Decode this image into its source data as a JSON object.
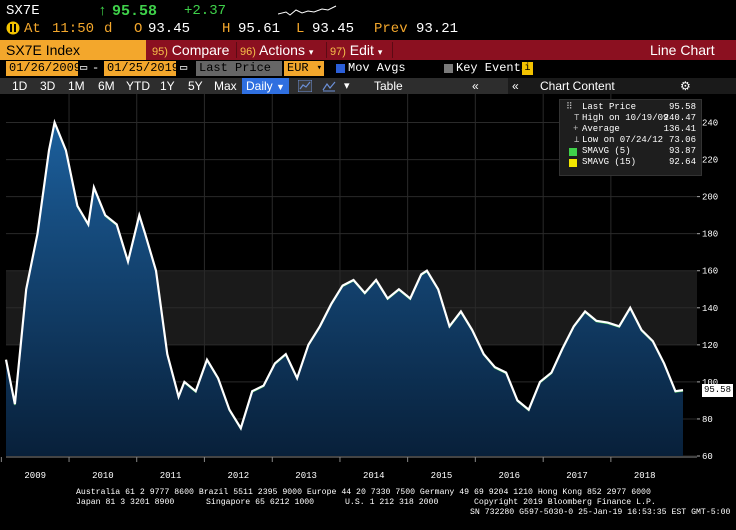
{
  "ticker": {
    "symbol": "SX7E",
    "arrow": "↑",
    "last": "95.58",
    "change": "+2.37",
    "at_label": "At",
    "time": "11:50",
    "time_flag": "d",
    "open_label": "O",
    "open": "93.45",
    "high_label": "H",
    "high": "95.61",
    "low_label": "L",
    "low": "93.45",
    "prev_label": "Prev",
    "prev": "93.21"
  },
  "menubar": {
    "title": "SX7E Index",
    "compare_num": "95)",
    "compare": "Compare",
    "actions_num": "96)",
    "actions": "Actions",
    "edit_num": "97)",
    "edit": "Edit",
    "chart_type": "Line Chart"
  },
  "datebar": {
    "start": "01/26/2009",
    "end": "01/25/2019",
    "field": "Last Price",
    "currency": "EUR",
    "mov_avgs": "Mov Avgs",
    "key_events": "Key Events"
  },
  "toolbar": {
    "periods": [
      "1D",
      "3D",
      "1M",
      "6M",
      "YTD",
      "1Y",
      "5Y",
      "Max"
    ],
    "frequency": "Daily",
    "table": "Table",
    "chart_content": "Chart Content"
  },
  "legend": {
    "last_label": "Last Price",
    "last_val": "95.58",
    "high_label": "High on 10/19/09",
    "high_val": "240.47",
    "avg_label": "Average",
    "avg_val": "136.41",
    "low_label": "Low on 07/24/12",
    "low_val": "73.06",
    "sma5_label": "SMAVG (5)",
    "sma5_val": "93.87",
    "sma15_label": "SMAVG (15)",
    "sma15_val": "92.64",
    "sma5_color": "#3fd14a",
    "sma15_color": "#f2e600"
  },
  "price_tag": "95.58",
  "footer": {
    "line1": "Australia 61 2 9777 8600 Brazil 5511 2395 9000 Europe 44 20 7330 7500 Germany 49 69 9204 1210 Hong Kong 852 2977 6000",
    "line2a": "Japan 81 3 3201 8900",
    "line2b": "Singapore 65 6212 1000",
    "line2c": "U.S. 1 212 318 2000",
    "line2d": "Copyright 2019 Bloomberg Finance L.P.",
    "line3": "SN 732280 G597-5030-0 25-Jan-19 16:53:35 EST  GMT-5:00"
  },
  "chart_data": {
    "type": "area",
    "series": [
      {
        "name": "Last Price",
        "color": "#ffffff",
        "fill": "#0f3a66"
      }
    ],
    "x": [
      "2009-01",
      "2009-03",
      "2009-05",
      "2009-07",
      "2009-09",
      "2009-10",
      "2009-12",
      "2010-02",
      "2010-04",
      "2010-05",
      "2010-07",
      "2010-09",
      "2010-11",
      "2011-01",
      "2011-02",
      "2011-04",
      "2011-06",
      "2011-08",
      "2011-09",
      "2011-11",
      "2012-01",
      "2012-03",
      "2012-05",
      "2012-07",
      "2012-09",
      "2012-11",
      "2013-01",
      "2013-03",
      "2013-05",
      "2013-07",
      "2013-09",
      "2013-11",
      "2014-01",
      "2014-03",
      "2014-05",
      "2014-07",
      "2014-09",
      "2014-11",
      "2015-01",
      "2015-03",
      "2015-04",
      "2015-06",
      "2015-08",
      "2015-10",
      "2015-12",
      "2016-02",
      "2016-04",
      "2016-06",
      "2016-08",
      "2016-10",
      "2016-12",
      "2017-02",
      "2017-04",
      "2017-06",
      "2017-08",
      "2017-10",
      "2017-12",
      "2018-02",
      "2018-04",
      "2018-06",
      "2018-08",
      "2018-10",
      "2018-12",
      "2019-01"
    ],
    "values": [
      112,
      88,
      150,
      180,
      225,
      240,
      225,
      195,
      185,
      205,
      190,
      185,
      165,
      190,
      180,
      160,
      115,
      92,
      100,
      95,
      112,
      102,
      85,
      75,
      95,
      98,
      110,
      115,
      102,
      120,
      130,
      142,
      152,
      155,
      148,
      155,
      145,
      150,
      145,
      158,
      160,
      150,
      130,
      138,
      128,
      115,
      108,
      105,
      90,
      85,
      100,
      105,
      118,
      130,
      138,
      133,
      132,
      130,
      140,
      128,
      122,
      110,
      95,
      95.58
    ],
    "ylim": [
      60,
      250
    ],
    "yticks": [
      60,
      80,
      100,
      120,
      140,
      160,
      180,
      200,
      220,
      240
    ],
    "xticks": [
      "2009",
      "2010",
      "2011",
      "2012",
      "2013",
      "2014",
      "2015",
      "2016",
      "2017",
      "2018"
    ],
    "grid": true,
    "legend_position": "top-right"
  }
}
